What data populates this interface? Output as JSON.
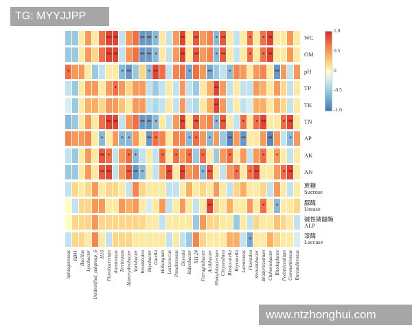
{
  "banners": {
    "tag": "TG: MYYJJPP",
    "watermark": "www.ntzhonghui.com"
  },
  "colors": {
    "banner_bg": "#a6a6a6",
    "banner_text": "#ffffff",
    "star": "#7c1414",
    "background": "#ffffff",
    "colormap_stops": [
      {
        "v": -1.0,
        "c": "#4575b4"
      },
      {
        "v": -0.7,
        "c": "#74add1"
      },
      {
        "v": -0.4,
        "c": "#abd9e9"
      },
      {
        "v": -0.15,
        "c": "#e0f3f8"
      },
      {
        "v": 0.0,
        "c": "#ffffbf"
      },
      {
        "v": 0.15,
        "c": "#fee090"
      },
      {
        "v": 0.4,
        "c": "#fdae61"
      },
      {
        "v": 0.7,
        "c": "#f46d43"
      },
      {
        "v": 1.0,
        "c": "#d73027"
      }
    ]
  },
  "chart_data": {
    "type": "heatmap",
    "title": "",
    "legend_position": "right",
    "colorbar": {
      "min": -1.0,
      "max": 1.0,
      "ticks": [
        "1.0",
        "0.5",
        "0",
        "-0.5",
        "-1.0"
      ]
    },
    "columns": [
      "Sphingomonas",
      "RB41",
      "Bacillus",
      "Lysobacter",
      "Unidentified_subgroup_6",
      "H16",
      "Flavobacterium",
      "Arenimonas",
      "Terrimonas",
      "Altererythrobacter",
      "Variibacter",
      "Woodsholea",
      "Bryobacter",
      "Gaiella",
      "Haliangium",
      "Lactococcus",
      "Pseudomonas",
      "Devosia",
      "Rubrobacter",
      "X11.24",
      "Ferruginibacter",
      "Acidibacter",
      "Phenylobacterium",
      "Chryseolinea",
      "Blastocatella",
      "Reyranella",
      "Luteimonas",
      "Flavitalea",
      "Steroidobacter",
      "Bradyrhizobium",
      "Chthoniobacter",
      "Rhodoplanes",
      "Pedomicrobium",
      "Gemmatimonas",
      "Brevundimonas"
    ],
    "rows": [
      {
        "label": "WC"
      },
      {
        "label": "OM"
      },
      {
        "label": "pH"
      },
      {
        "label": "TP"
      },
      {
        "label": "TK"
      },
      {
        "label": "TN"
      },
      {
        "label": "AP"
      },
      {
        "label": "AK"
      },
      {
        "label": "AN"
      },
      {
        "label": "Sucrose",
        "label_cn": "蔗糖"
      },
      {
        "label": "Urease",
        "label_cn": "脲酶"
      },
      {
        "label": "ALP",
        "label_cn": "碱性磷酸酶"
      },
      {
        "label": "Laccase",
        "label_cn": "漆酶"
      }
    ],
    "values": [
      [
        -0.5,
        -0.5,
        0.1,
        0.5,
        0.1,
        0.7,
        0.9,
        0.9,
        -0.3,
        0.5,
        0.7,
        -0.8,
        -0.8,
        -0.6,
        0.1,
        -0.3,
        0.5,
        0.9,
        0.1,
        0.8,
        0.5,
        0.6,
        -0.6,
        0.8,
        0.1,
        -0.3,
        0.1,
        0.7,
        0.1,
        0.7,
        0.9,
        0.1,
        0.1,
        0.5,
        0.1
      ],
      [
        -0.5,
        -0.5,
        0.1,
        0.5,
        0.2,
        0.7,
        0.9,
        0.9,
        -0.3,
        0.5,
        0.7,
        -0.8,
        -0.8,
        -0.6,
        0.1,
        -0.3,
        0.5,
        0.9,
        0.1,
        0.8,
        0.5,
        0.6,
        -0.6,
        0.8,
        0.1,
        -0.3,
        0.1,
        0.7,
        0.1,
        0.7,
        0.9,
        0.1,
        0.1,
        0.5,
        0.1
      ],
      [
        0.7,
        0.5,
        0.5,
        0.1,
        -0.5,
        -0.3,
        0.1,
        0.1,
        -0.6,
        -0.8,
        -0.5,
        0.2,
        -0.6,
        0.9,
        0.7,
        -0.3,
        0.6,
        0.7,
        -0.7,
        0.7,
        0.5,
        -0.7,
        -0.5,
        -0.3,
        -0.6,
        0.6,
        0.5,
        0.1,
        0.5,
        0.6,
        0.1,
        -0.8,
        0.5,
        -0.3,
        0.5
      ],
      [
        -0.3,
        -0.5,
        0.1,
        0.5,
        0.5,
        0.1,
        0.5,
        0.7,
        0.5,
        0.2,
        0.5,
        0.5,
        -0.3,
        -0.5,
        -0.3,
        0.1,
        -0.3,
        0.5,
        -0.3,
        -0.5,
        0.1,
        0.4,
        0.9,
        0.5,
        -0.3,
        0.1,
        -0.3,
        -0.3,
        0.5,
        0.4,
        0.1,
        0.5,
        0.2,
        -0.3,
        0.1
      ],
      [
        -0.2,
        -0.5,
        0.1,
        0.4,
        0.4,
        0.2,
        0.5,
        0.5,
        0.3,
        0.1,
        0.5,
        0.5,
        -0.3,
        -0.4,
        -0.3,
        0.1,
        -0.3,
        0.5,
        -0.3,
        -0.4,
        0.1,
        0.4,
        0.9,
        0.5,
        -0.3,
        0.1,
        -0.3,
        -0.2,
        0.4,
        0.4,
        0.1,
        0.4,
        0.2,
        -0.3,
        0.1
      ],
      [
        -0.6,
        -0.5,
        0.1,
        0.5,
        0.1,
        0.7,
        0.9,
        0.9,
        -0.3,
        0.5,
        0.7,
        -0.8,
        -0.8,
        -0.6,
        0.1,
        -0.3,
        0.5,
        0.9,
        0.1,
        0.8,
        0.5,
        0.6,
        -0.6,
        0.8,
        0.1,
        -0.3,
        0.7,
        0.1,
        0.7,
        0.9,
        0.1,
        0.1,
        0.7,
        0.9,
        0.1
      ],
      [
        0.6,
        0.5,
        0.5,
        0.6,
        0.1,
        -0.6,
        0.1,
        0.5,
        -0.6,
        -0.6,
        0.5,
        0.1,
        -0.8,
        0.7,
        0.6,
        0.1,
        0.6,
        0.6,
        -0.6,
        0.7,
        0.5,
        -0.6,
        0.5,
        -0.5,
        -0.9,
        0.5,
        -0.8,
        0.1,
        0.1,
        0.5,
        -0.9,
        0.5,
        -0.3,
        -0.6,
        0.5
      ],
      [
        -0.3,
        -0.5,
        0.1,
        0.5,
        0.1,
        0.8,
        0.7,
        -0.3,
        0.5,
        0.7,
        -0.6,
        -0.3,
        0.1,
        -0.3,
        0.7,
        0.1,
        0.7,
        0.5,
        0.7,
        -0.5,
        0.7,
        0.1,
        -0.5,
        0.5,
        0.7,
        0.1,
        0.5,
        -0.3,
        0.5,
        0.7,
        0.1,
        0.5,
        0.1,
        -0.3,
        0.1
      ],
      [
        -0.5,
        -0.5,
        0.1,
        0.5,
        0.1,
        0.8,
        0.9,
        -0.3,
        0.5,
        0.8,
        -0.8,
        -0.6,
        0.1,
        -0.3,
        0.5,
        0.9,
        0.1,
        0.9,
        0.5,
        0.6,
        -0.6,
        0.8,
        0.1,
        -0.3,
        0.5,
        0.7,
        0.1,
        0.7,
        0.9,
        0.1,
        0.1,
        0.5,
        0.7,
        0.9,
        0.1
      ],
      [
        -0.3,
        0.2,
        0.1,
        0.2,
        0.5,
        0.1,
        0.2,
        0.2,
        0.1,
        -0.3,
        0.6,
        0.2,
        0.1,
        0.1,
        0.1,
        -0.3,
        -0.3,
        0.1,
        0.4,
        0.1,
        0.2,
        0.1,
        0.5,
        0.1,
        -0.3,
        0.2,
        0.4,
        0.1,
        0.1,
        0.2,
        -0.3,
        0.5,
        0.1,
        -0.3,
        0.1
      ],
      [
        0.0,
        -0.3,
        0.2,
        0.2,
        0.5,
        0.5,
        0.1,
        0.1,
        0.5,
        0.4,
        0.5,
        0.1,
        -0.2,
        0.1,
        0.5,
        -0.3,
        0.1,
        0.5,
        0.1,
        -0.3,
        0.1,
        0.9,
        0.2,
        0.1,
        0.4,
        0.1,
        0.1,
        0.5,
        0.1,
        0.7,
        0.1,
        -0.6,
        0.1,
        0.1,
        0.2
      ],
      [
        0.0,
        0.2,
        0.2,
        0.2,
        0.5,
        0.2,
        0.2,
        0.2,
        0.2,
        0.2,
        0.2,
        0.2,
        0.1,
        0.1,
        -0.3,
        0.1,
        0.1,
        0.1,
        0.1,
        -0.5,
        0.5,
        0.2,
        0.2,
        0.1,
        0.1,
        -0.5,
        0.1,
        -0.3,
        0.2,
        0.1,
        0.1,
        0.3,
        0.2,
        0.1,
        -0.3
      ],
      [
        -0.3,
        0.2,
        0.2,
        0.1,
        0.6,
        0.1,
        -0.3,
        0.2,
        0.2,
        0.2,
        0.1,
        0.1,
        0.1,
        0.1,
        0.1,
        -0.3,
        0.1,
        -0.3,
        -0.5,
        0.6,
        0.2,
        0.1,
        0.1,
        0.1,
        0.4,
        0.4,
        -0.3,
        -0.7,
        0.1,
        0.1,
        0.4,
        0.2,
        0.1,
        0.1,
        -0.2
      ]
    ],
    "significance": [
      [
        "",
        "",
        "",
        "",
        "",
        "",
        "**",
        "**",
        "",
        "",
        "",
        "**",
        "**",
        "*",
        "",
        "",
        "",
        "**",
        "",
        "**",
        "",
        "",
        "*",
        "**",
        "",
        "",
        "",
        "*",
        "",
        "*",
        "**",
        "",
        "",
        "",
        ""
      ],
      [
        "",
        "",
        "",
        "",
        "",
        "",
        "**",
        "**",
        "",
        "",
        "",
        "**",
        "**",
        "*",
        "",
        "",
        "",
        "**",
        "",
        "**",
        "",
        "",
        "*",
        "**",
        "",
        "",
        "",
        "*",
        "",
        "*",
        "**",
        "",
        "",
        "",
        ""
      ],
      [
        "*",
        "",
        "",
        "",
        "",
        "",
        "",
        "",
        "*",
        "**",
        "",
        "",
        "*",
        "**",
        "",
        "",
        "",
        "",
        "*",
        "",
        "",
        "**",
        "",
        "",
        "*",
        "",
        "",
        "",
        "",
        "",
        "",
        "**",
        "",
        "",
        ""
      ],
      [
        "",
        "",
        "",
        "",
        "",
        "",
        "",
        "*",
        "",
        "",
        "",
        "",
        "",
        "",
        "",
        "",
        "",
        "",
        "",
        "",
        "",
        "",
        "**",
        "",
        "",
        "",
        "",
        "",
        "",
        "",
        "",
        "",
        "",
        "",
        ""
      ],
      [
        "",
        "",
        "",
        "",
        "",
        "",
        "",
        "",
        "",
        "",
        "",
        "",
        "",
        "",
        "",
        "",
        "",
        "",
        "",
        "",
        "",
        "",
        "**",
        "",
        "",
        "",
        "",
        "",
        "",
        "",
        "",
        "",
        "",
        "",
        ""
      ],
      [
        "",
        "",
        "",
        "",
        "",
        "",
        "**",
        "**",
        "",
        "",
        "",
        "**",
        "**",
        "*",
        "",
        "",
        "",
        "**",
        "",
        "**",
        "",
        "",
        "*",
        "**",
        "",
        "",
        "*",
        "",
        "*",
        "**",
        "",
        "",
        "*",
        "**",
        ""
      ],
      [
        "",
        "",
        "",
        "",
        "",
        "*",
        "",
        "",
        "*",
        "*",
        "",
        "",
        "**",
        "*",
        "",
        "",
        "",
        "",
        "*",
        "*",
        "",
        "*",
        "",
        "",
        "**",
        "",
        "**",
        "",
        "",
        "",
        "**",
        "",
        "",
        "*",
        ""
      ],
      [
        "",
        "",
        "",
        "",
        "",
        "**",
        "*",
        "",
        "",
        "*",
        "*",
        "",
        "",
        "",
        "*",
        "",
        "*",
        "",
        "*",
        "",
        "*",
        "",
        "",
        "",
        "*",
        "",
        "",
        "",
        "",
        "*",
        "",
        "*",
        "",
        "",
        ""
      ],
      [
        "",
        "",
        "",
        "",
        "",
        "**",
        "**",
        "",
        "",
        "**",
        "**",
        "*",
        "",
        "",
        "",
        "**",
        "",
        "**",
        "",
        "",
        "*",
        "**",
        "",
        "",
        "",
        "*",
        "",
        "*",
        "**",
        "",
        "",
        "",
        "*",
        "**",
        ""
      ],
      [
        "",
        "",
        "",
        "",
        "",
        "",
        "",
        "",
        "",
        "",
        "",
        "",
        "",
        "",
        "",
        "",
        "",
        "",
        "",
        "",
        "",
        "",
        "",
        "",
        "",
        "",
        "",
        "",
        "",
        "",
        "",
        "",
        "",
        "",
        ""
      ],
      [
        "",
        "",
        "",
        "",
        "",
        "",
        "",
        "",
        "",
        "",
        "",
        "",
        "",
        "",
        "",
        "",
        "",
        "",
        "",
        "",
        "",
        "**",
        "",
        "",
        "",
        "",
        "",
        "",
        "",
        "*",
        "",
        "*",
        "",
        "",
        ""
      ],
      [
        "",
        "",
        "",
        "",
        "",
        "",
        "",
        "",
        "",
        "",
        "",
        "",
        "",
        "",
        "",
        "",
        "",
        "",
        "",
        "",
        "",
        "",
        "",
        "",
        "",
        "",
        "",
        "",
        "",
        "",
        "",
        "",
        "",
        "",
        ""
      ],
      [
        "",
        "",
        "",
        "",
        "",
        "",
        "",
        "",
        "",
        "",
        "",
        "",
        "",
        "",
        "",
        "",
        "",
        "",
        "",
        "",
        "",
        "",
        "",
        "",
        "",
        "",
        "",
        "*",
        "",
        "",
        "",
        "",
        "",
        "",
        ""
      ]
    ]
  }
}
